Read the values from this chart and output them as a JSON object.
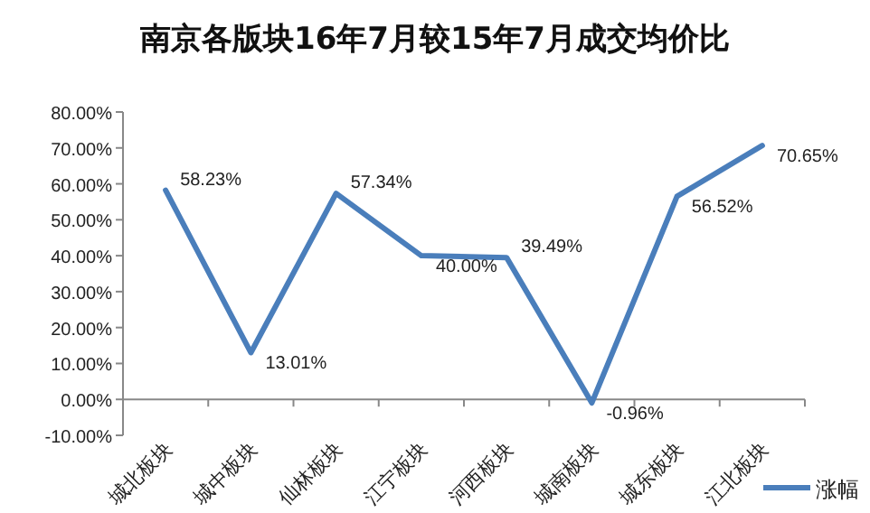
{
  "chart_data": {
    "type": "line",
    "title": "南京各版块16年7月较15年7月成交均价比",
    "categories": [
      "城北板块",
      "城中板块",
      "仙林板块",
      "江宁板块",
      "河西板块",
      "城南板块",
      "城东板块",
      "江北板块"
    ],
    "series": [
      {
        "name": "涨幅",
        "color": "#4a7ebb",
        "values": [
          58.23,
          13.01,
          57.34,
          40.0,
          39.49,
          -0.96,
          56.52,
          70.65
        ],
        "value_labels": [
          "58.23%",
          "13.01%",
          "57.34%",
          "40.00%",
          "39.49%",
          "-0.96%",
          "56.52%",
          "70.65%"
        ]
      }
    ],
    "ylim": [
      -10,
      80
    ],
    "yticks": [
      {
        "value": -10,
        "label": "-10.00%"
      },
      {
        "value": 0,
        "label": "0.00%"
      },
      {
        "value": 10,
        "label": "10.00%"
      },
      {
        "value": 20,
        "label": "20.00%"
      },
      {
        "value": 30,
        "label": "30.00%"
      },
      {
        "value": 40,
        "label": "40.00%"
      },
      {
        "value": 50,
        "label": "50.00%"
      },
      {
        "value": 60,
        "label": "60.00%"
      },
      {
        "value": 70,
        "label": "70.00%"
      },
      {
        "value": 80,
        "label": "80.00%"
      }
    ],
    "legend": "right",
    "grid": false,
    "marker": "none",
    "line_style": "solid"
  }
}
